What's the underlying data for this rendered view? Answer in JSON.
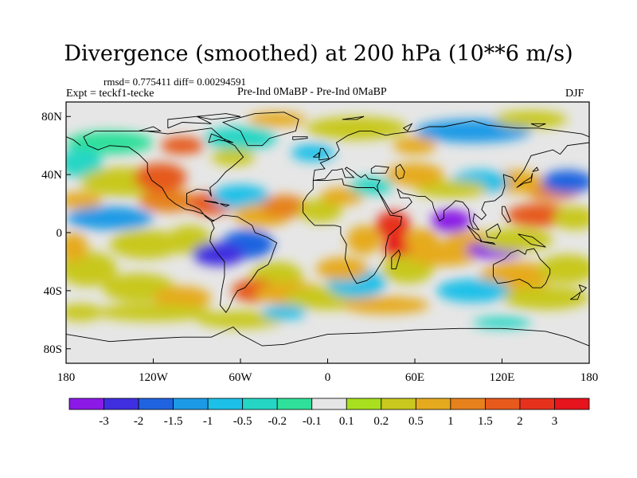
{
  "chart_data": {
    "type": "heatmap",
    "title": "Divergence (smoothed) at 200 hPa (10**6 m/s)",
    "stats": "rmsd= 0.775411 diff= 0.00294591",
    "experiment": "Expt = teckf1-tecke",
    "comparison": "Pre-Ind 0MaBP - Pre-Ind 0MaBP",
    "season": "DJF",
    "x_ticks": [
      {
        "label": "180",
        "lon": -180
      },
      {
        "label": "120W",
        "lon": -120
      },
      {
        "label": "60W",
        "lon": -60
      },
      {
        "label": "0",
        "lon": 0
      },
      {
        "label": "60E",
        "lon": 60
      },
      {
        "label": "120E",
        "lon": 120
      },
      {
        "label": "180",
        "lon": 180
      }
    ],
    "y_ticks": [
      {
        "label": "80N",
        "lat": 80
      },
      {
        "label": "40N",
        "lat": 40
      },
      {
        "label": "0",
        "lat": 0
      },
      {
        "label": "40S",
        "lat": -40
      },
      {
        "label": "80S",
        "lat": -80
      }
    ],
    "xlim": [
      -180,
      180
    ],
    "ylim": [
      -90,
      90
    ],
    "colorbar": {
      "labels": [
        "-3",
        "-2",
        "-1.5",
        "-1",
        "-0.5",
        "-0.2",
        "-0.1",
        "0.1",
        "0.2",
        "0.5",
        "1",
        "1.5",
        "2",
        "3"
      ],
      "colors": [
        "#8b1ae6",
        "#3f2fe0",
        "#1f63e0",
        "#1c9ae6",
        "#1cc0e8",
        "#25d6c5",
        "#2fe09a",
        "#e6e6e6",
        "#a8e01f",
        "#c8c81f",
        "#e6aa1f",
        "#e6821c",
        "#e65a1c",
        "#e6321c",
        "#e6141c"
      ]
    }
  }
}
